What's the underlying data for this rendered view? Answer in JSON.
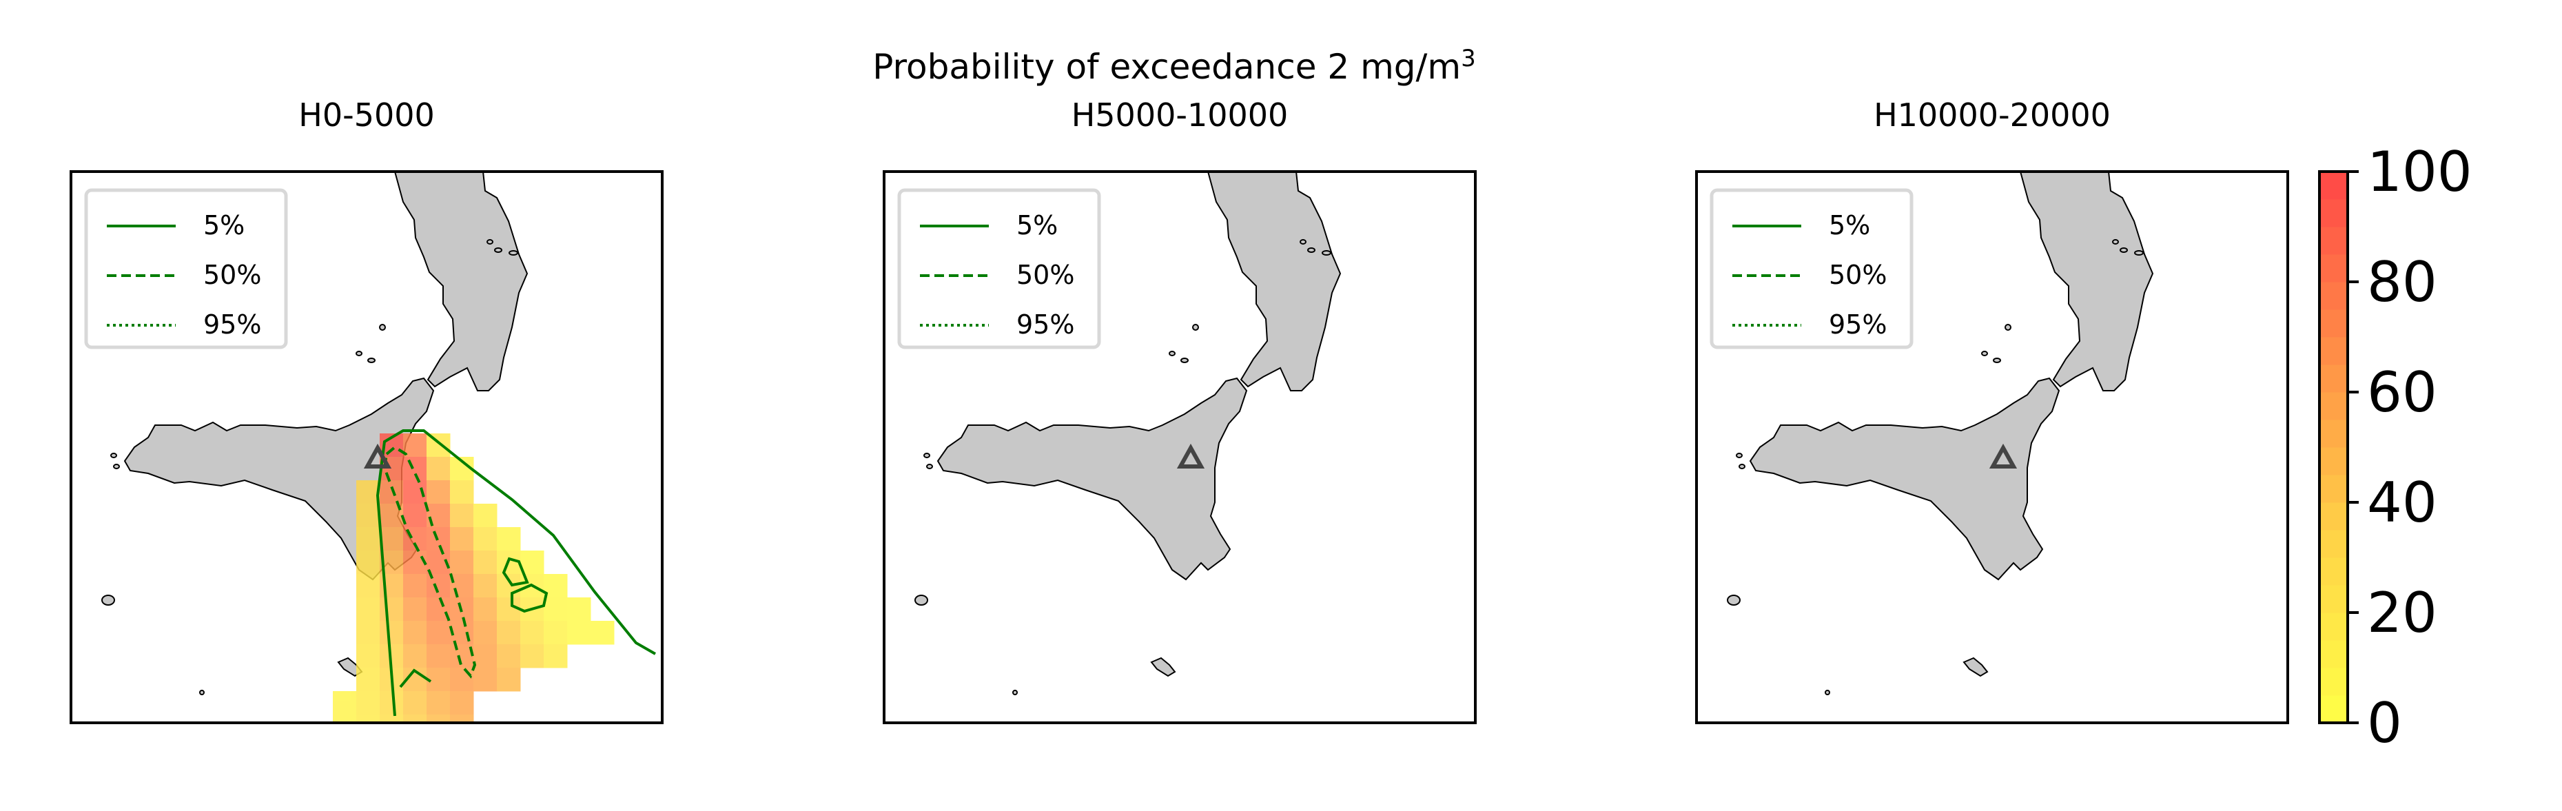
{
  "figure": {
    "suptitle": "Probability of exceedance 2 mg/m",
    "suptitle_sup": "3"
  },
  "panels": [
    {
      "title": "H0-5000",
      "has_plume": true
    },
    {
      "title": "H5000-10000",
      "has_plume": false
    },
    {
      "title": "H10000-20000",
      "has_plume": false
    }
  ],
  "legend": {
    "items": [
      {
        "label": "5%",
        "style": "solid"
      },
      {
        "label": "50%",
        "style": "dashed"
      },
      {
        "label": "95%",
        "style": "dotted"
      }
    ],
    "color": "#007d00"
  },
  "colorbar": {
    "ticks": [
      "0",
      "20",
      "40",
      "60",
      "80",
      "100"
    ],
    "min": 0,
    "max": 100,
    "colors": [
      "#ffff47",
      "#ffd347",
      "#ff8f47",
      "#ff4747"
    ]
  },
  "map_style": {
    "land_color": "#c8c8c8",
    "coast_color": "#000000",
    "volcano_color": "#444444",
    "contour_color": "#007d00"
  }
}
